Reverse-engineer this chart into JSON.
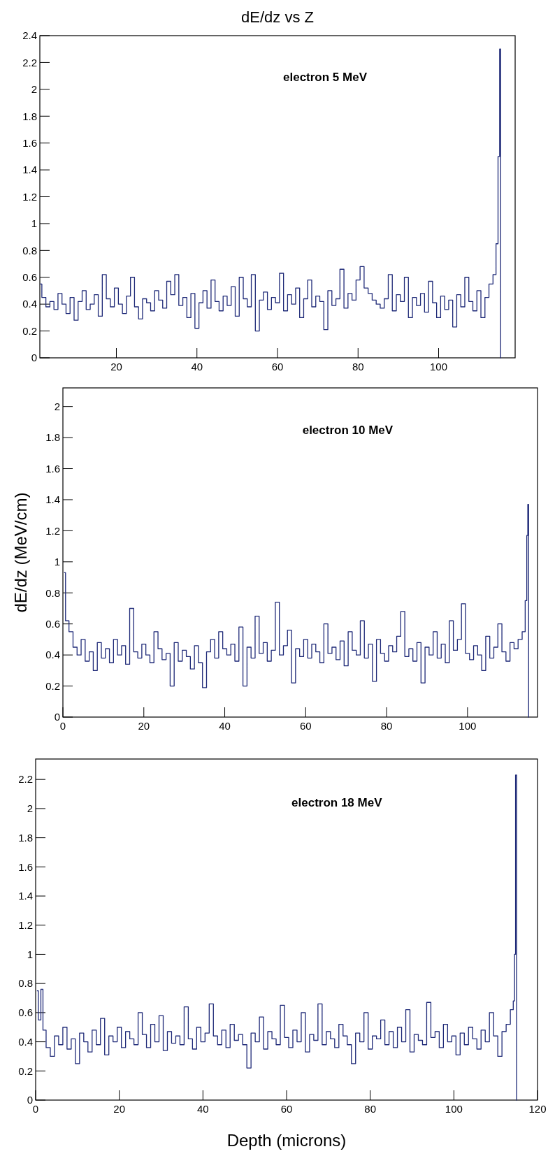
{
  "chart_data": [
    {
      "type": "step",
      "title": "dE/dz vs Z",
      "annotations": [
        "electron 5 MeV"
      ],
      "color": "#1f2a78",
      "xlim": [
        1,
        119
      ],
      "xticks": [
        20,
        40,
        60,
        80,
        100
      ],
      "ylim": [
        0,
        2.4
      ],
      "yticks": [
        0,
        0.2,
        0.4,
        0.6,
        0.8,
        1,
        1.2,
        1.4,
        1.6,
        1.8,
        2,
        2.2,
        2.4
      ],
      "x": [
        1,
        2,
        3,
        4,
        5,
        6,
        7,
        8,
        9,
        10,
        11,
        12,
        13,
        14,
        15,
        16,
        17,
        18,
        19,
        20,
        21,
        22,
        23,
        24,
        25,
        26,
        27,
        28,
        29,
        30,
        31,
        32,
        33,
        34,
        35,
        36,
        37,
        38,
        39,
        40,
        41,
        42,
        43,
        44,
        45,
        46,
        47,
        48,
        49,
        50,
        51,
        52,
        53,
        54,
        55,
        56,
        57,
        58,
        59,
        60,
        61,
        62,
        63,
        64,
        65,
        66,
        67,
        68,
        69,
        70,
        71,
        72,
        73,
        74,
        75,
        76,
        77,
        78,
        79,
        80,
        81,
        82,
        83,
        84,
        85,
        86,
        87,
        88,
        89,
        90,
        91,
        92,
        93,
        94,
        95,
        96,
        97,
        98,
        99,
        100,
        101,
        102,
        103,
        104,
        105,
        106,
        107,
        108,
        109,
        110,
        111,
        112,
        113,
        114,
        114.5,
        115,
        115.3,
        115.5
      ],
      "values": [
        0.55,
        0.45,
        0.38,
        0.42,
        0.36,
        0.48,
        0.4,
        0.33,
        0.45,
        0.28,
        0.42,
        0.5,
        0.36,
        0.4,
        0.47,
        0.31,
        0.62,
        0.44,
        0.38,
        0.52,
        0.4,
        0.33,
        0.46,
        0.6,
        0.38,
        0.29,
        0.44,
        0.41,
        0.35,
        0.5,
        0.43,
        0.37,
        0.57,
        0.47,
        0.62,
        0.39,
        0.45,
        0.3,
        0.48,
        0.22,
        0.41,
        0.5,
        0.37,
        0.58,
        0.42,
        0.35,
        0.46,
        0.39,
        0.53,
        0.31,
        0.6,
        0.44,
        0.38,
        0.62,
        0.2,
        0.43,
        0.49,
        0.36,
        0.45,
        0.41,
        0.63,
        0.35,
        0.47,
        0.4,
        0.52,
        0.3,
        0.44,
        0.58,
        0.38,
        0.46,
        0.42,
        0.21,
        0.5,
        0.39,
        0.44,
        0.66,
        0.37,
        0.48,
        0.43,
        0.58,
        0.68,
        0.52,
        0.48,
        0.43,
        0.4,
        0.37,
        0.44,
        0.62,
        0.35,
        0.47,
        0.42,
        0.6,
        0.3,
        0.45,
        0.39,
        0.48,
        0.34,
        0.57,
        0.41,
        0.3,
        0.46,
        0.36,
        0.43,
        0.23,
        0.47,
        0.38,
        0.6,
        0.42,
        0.35,
        0.5,
        0.3,
        0.45,
        0.55,
        0.62,
        0.85,
        1.5,
        2.3,
        0
      ]
    },
    {
      "type": "step",
      "ylabel": "dE/dz (MeV/cm)",
      "annotations": [
        "electron 10 MeV"
      ],
      "color": "#1f2a78",
      "xlim": [
        0,
        117.3
      ],
      "xticks": [
        0,
        20,
        40,
        60,
        80,
        100
      ],
      "ylim": [
        0,
        2.12
      ],
      "yticks": [
        0,
        0.2,
        0.4,
        0.6,
        0.8,
        1,
        1.2,
        1.4,
        1.6,
        1.8,
        2
      ],
      "x": [
        0.3,
        1,
        2,
        3,
        4,
        5,
        6,
        7,
        8,
        9,
        10,
        11,
        12,
        13,
        14,
        15,
        16,
        17,
        18,
        19,
        20,
        21,
        22,
        23,
        24,
        25,
        26,
        27,
        28,
        29,
        30,
        31,
        32,
        33,
        34,
        35,
        36,
        37,
        38,
        39,
        40,
        41,
        42,
        43,
        44,
        45,
        46,
        47,
        48,
        49,
        50,
        51,
        52,
        53,
        54,
        55,
        56,
        57,
        58,
        59,
        60,
        61,
        62,
        63,
        64,
        65,
        66,
        67,
        68,
        69,
        70,
        71,
        72,
        73,
        74,
        75,
        76,
        77,
        78,
        79,
        80,
        81,
        82,
        83,
        84,
        85,
        86,
        87,
        88,
        89,
        90,
        91,
        92,
        93,
        94,
        95,
        96,
        97,
        98,
        99,
        100,
        101,
        102,
        103,
        104,
        105,
        106,
        107,
        108,
        109,
        110,
        111,
        112,
        113,
        114,
        114.5,
        114.8,
        115,
        115.2
      ],
      "values": [
        0.93,
        0.62,
        0.55,
        0.45,
        0.4,
        0.5,
        0.36,
        0.42,
        0.3,
        0.48,
        0.38,
        0.44,
        0.35,
        0.5,
        0.4,
        0.46,
        0.34,
        0.7,
        0.42,
        0.38,
        0.47,
        0.4,
        0.35,
        0.55,
        0.44,
        0.37,
        0.41,
        0.2,
        0.48,
        0.36,
        0.43,
        0.39,
        0.31,
        0.46,
        0.35,
        0.19,
        0.42,
        0.5,
        0.38,
        0.55,
        0.44,
        0.4,
        0.47,
        0.36,
        0.58,
        0.2,
        0.45,
        0.38,
        0.65,
        0.41,
        0.48,
        0.36,
        0.43,
        0.74,
        0.4,
        0.46,
        0.56,
        0.22,
        0.44,
        0.39,
        0.5,
        0.38,
        0.47,
        0.42,
        0.35,
        0.6,
        0.41,
        0.45,
        0.37,
        0.49,
        0.33,
        0.55,
        0.43,
        0.4,
        0.62,
        0.38,
        0.47,
        0.23,
        0.5,
        0.41,
        0.36,
        0.46,
        0.42,
        0.52,
        0.68,
        0.39,
        0.44,
        0.36,
        0.48,
        0.22,
        0.45,
        0.4,
        0.55,
        0.38,
        0.47,
        0.35,
        0.62,
        0.43,
        0.5,
        0.73,
        0.41,
        0.37,
        0.46,
        0.4,
        0.3,
        0.52,
        0.38,
        0.45,
        0.6,
        0.42,
        0.36,
        0.48,
        0.44,
        0.5,
        0.55,
        0.75,
        1.17,
        1.37,
        0
      ]
    },
    {
      "type": "step",
      "xlabel": "Depth (microns)",
      "annotations": [
        "electron 18 MeV"
      ],
      "color": "#1f2a78",
      "xlim": [
        0,
        120
      ],
      "xticks": [
        0,
        20,
        40,
        60,
        80,
        100,
        120
      ],
      "ylim": [
        0,
        2.34
      ],
      "yticks": [
        0,
        0.2,
        0.4,
        0.6,
        0.8,
        1,
        1.2,
        1.4,
        1.6,
        1.8,
        2,
        2.2
      ],
      "x": [
        0.3,
        1,
        1.5,
        2,
        3,
        4,
        5,
        6,
        7,
        8,
        9,
        10,
        11,
        12,
        13,
        14,
        15,
        16,
        17,
        18,
        19,
        20,
        21,
        22,
        23,
        24,
        25,
        26,
        27,
        28,
        29,
        30,
        31,
        32,
        33,
        34,
        35,
        36,
        37,
        38,
        39,
        40,
        41,
        42,
        43,
        44,
        45,
        46,
        47,
        48,
        49,
        50,
        51,
        52,
        53,
        54,
        55,
        56,
        57,
        58,
        59,
        60,
        61,
        62,
        63,
        64,
        65,
        66,
        67,
        68,
        69,
        70,
        71,
        72,
        73,
        74,
        75,
        76,
        77,
        78,
        79,
        80,
        81,
        82,
        83,
        84,
        85,
        86,
        87,
        88,
        89,
        90,
        91,
        92,
        93,
        94,
        95,
        96,
        97,
        98,
        99,
        100,
        101,
        102,
        103,
        104,
        105,
        106,
        107,
        108,
        109,
        110,
        111,
        112,
        113,
        114,
        114.4,
        114.6,
        114.9,
        115.1
      ],
      "values": [
        0.75,
        0.55,
        0.76,
        0.48,
        0.36,
        0.3,
        0.44,
        0.38,
        0.5,
        0.35,
        0.42,
        0.25,
        0.46,
        0.4,
        0.33,
        0.48,
        0.38,
        0.56,
        0.31,
        0.44,
        0.4,
        0.5,
        0.36,
        0.47,
        0.42,
        0.38,
        0.6,
        0.45,
        0.36,
        0.52,
        0.4,
        0.58,
        0.34,
        0.47,
        0.39,
        0.44,
        0.38,
        0.64,
        0.42,
        0.35,
        0.5,
        0.4,
        0.46,
        0.66,
        0.44,
        0.38,
        0.48,
        0.36,
        0.52,
        0.41,
        0.45,
        0.38,
        0.22,
        0.46,
        0.4,
        0.57,
        0.35,
        0.47,
        0.42,
        0.38,
        0.65,
        0.43,
        0.36,
        0.48,
        0.4,
        0.6,
        0.33,
        0.45,
        0.41,
        0.66,
        0.38,
        0.47,
        0.42,
        0.36,
        0.52,
        0.44,
        0.38,
        0.25,
        0.46,
        0.4,
        0.6,
        0.35,
        0.44,
        0.42,
        0.55,
        0.38,
        0.47,
        0.36,
        0.5,
        0.4,
        0.62,
        0.33,
        0.45,
        0.41,
        0.38,
        0.67,
        0.43,
        0.47,
        0.36,
        0.52,
        0.4,
        0.44,
        0.31,
        0.46,
        0.38,
        0.5,
        0.42,
        0.35,
        0.48,
        0.4,
        0.6,
        0.44,
        0.3,
        0.47,
        0.52,
        0.62,
        0.68,
        1.0,
        2.23,
        0
      ]
    }
  ]
}
